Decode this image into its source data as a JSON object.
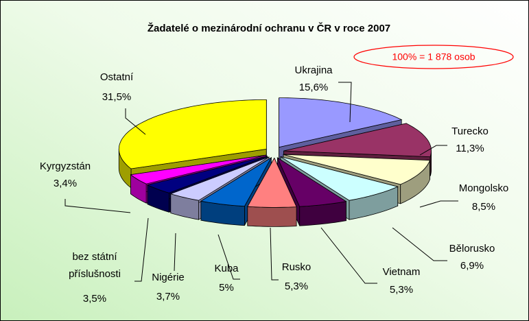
{
  "chart_data": {
    "type": "pie",
    "title": "Žadatelé o mezinárodní ochranu v ČR v roce 2007",
    "annotation": "100% = 1 878 osob",
    "categories": [
      "Ukrajina",
      "Turecko",
      "Mongolsko",
      "Bělorusko",
      "Vietnam",
      "Rusko",
      "Kuba",
      "Nigérie",
      "bez státní příslušnosti",
      "Kyrgyzstán",
      "Ostatní"
    ],
    "values": [
      15.6,
      11.3,
      8.5,
      6.9,
      5.3,
      5.3,
      5,
      3.7,
      3.5,
      3.4,
      31.5
    ],
    "value_labels": [
      "15,6%",
      "11,3%",
      "8,5%",
      "6,9%",
      "5,3%",
      "5,3%",
      "5%",
      "3,7%",
      "3,5%",
      "3,4%",
      "31,5%"
    ],
    "colors": [
      "#9999ff",
      "#993366",
      "#ffffcc",
      "#ccffff",
      "#660066",
      "#ff8080",
      "#0066cc",
      "#ccccff",
      "#000080",
      "#ff00ff",
      "#ffff00"
    ]
  }
}
